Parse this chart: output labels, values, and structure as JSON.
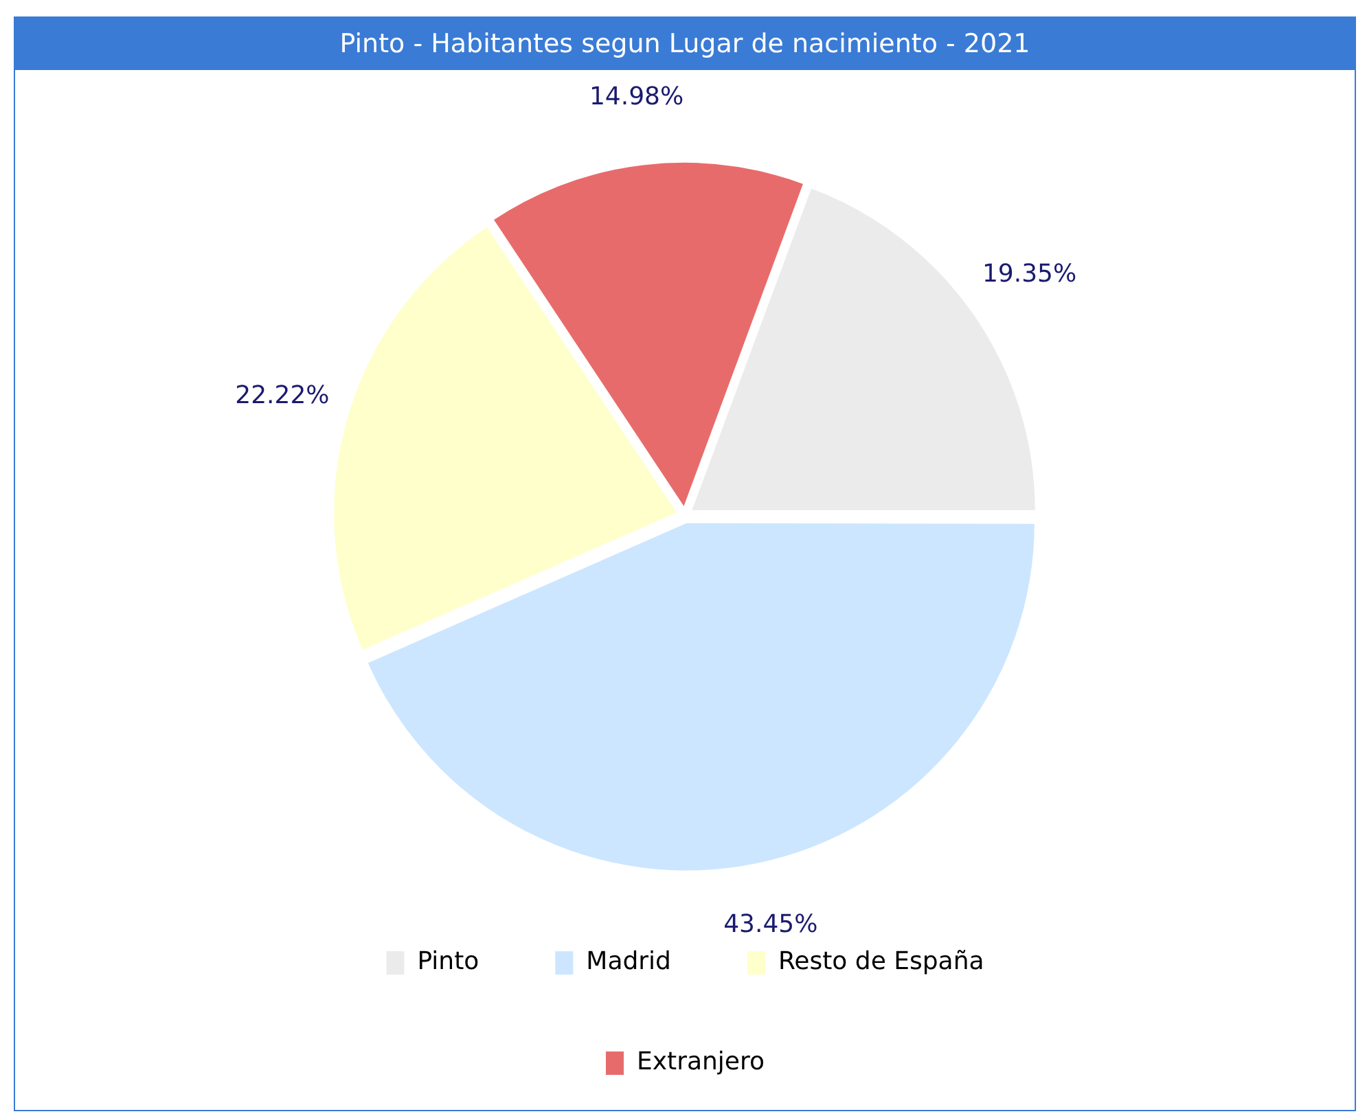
{
  "chart_data": {
    "type": "pie",
    "title": "Pinto - Habitantes segun Lugar de nacimiento - 2021",
    "categories": [
      "Pinto",
      "Madrid",
      "Resto de España",
      "Extranjero"
    ],
    "values": [
      19.35,
      43.45,
      22.22,
      14.98
    ],
    "colors": [
      "#ebebeb",
      "#cce6ff",
      "#ffffcc",
      "#e86b6b"
    ],
    "value_labels": [
      "19.35%",
      "43.45%",
      "22.22%",
      "14.98%"
    ],
    "legend": "bottom"
  }
}
